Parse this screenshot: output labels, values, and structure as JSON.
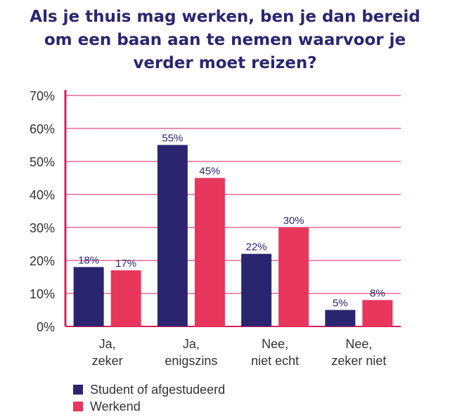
{
  "title_lines": [
    "Als je thuis mag werken, ben je dan bereid",
    "om een baan aan te nemen waarvoor je",
    "verder moet reizen?"
  ],
  "colors": {
    "title": "#2b2570",
    "student": "#2b2570",
    "werkend": "#e8365d",
    "grid": "#d91e5b",
    "axis": "#d91e5b"
  },
  "chart_data": {
    "type": "bar",
    "title": "Als je thuis mag werken, ben je dan bereid om een baan aan te nemen waarvoor je verder moet reizen?",
    "categories": [
      [
        "Ja,",
        "zeker"
      ],
      [
        "Ja,",
        "enigszins"
      ],
      [
        "Nee,",
        "niet echt"
      ],
      [
        "Nee,",
        "zeker niet"
      ]
    ],
    "series": [
      {
        "name": "Student of afgestudeerd",
        "values": [
          18,
          55,
          22,
          5
        ],
        "labels": [
          "18%",
          "55%",
          "22%",
          "5%"
        ]
      },
      {
        "name": "Werkend",
        "values": [
          17,
          45,
          30,
          8
        ],
        "labels": [
          "17%",
          "45%",
          "30%",
          "8%"
        ]
      }
    ],
    "y_ticks": [
      "0%",
      "10%",
      "20%",
      "30%",
      "40%",
      "50%",
      "60%",
      "70%"
    ],
    "ylim": [
      0,
      70
    ],
    "grid": true,
    "legend_position": "bottom-left"
  },
  "legend": [
    {
      "label": "Student of afgestudeerd"
    },
    {
      "label": "Werkend"
    }
  ]
}
